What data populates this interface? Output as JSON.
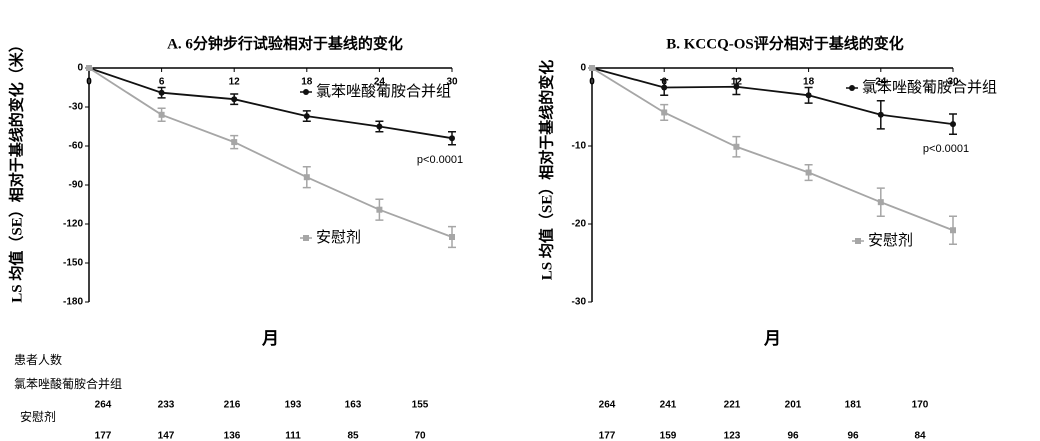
{
  "chart_data": [
    {
      "type": "line",
      "title": "A. 6分钟步行试验相对于基线的变化",
      "ylabel": "LS 均值（SE）相对于基线的变化（米）",
      "xlabel": "月",
      "x": [
        0,
        6,
        12,
        18,
        24,
        30
      ],
      "xlim": [
        0,
        30
      ],
      "xticks": [
        0,
        6,
        12,
        18,
        24,
        30
      ],
      "ylim": [
        -180,
        0
      ],
      "yticks": [
        0,
        -30,
        -60,
        -90,
        -120,
        -150,
        -180
      ],
      "annotation": "p<0.0001",
      "series": [
        {
          "name": "氯苯唑酸葡胺合并组",
          "color": "#111111",
          "marker": "circle",
          "values": [
            0,
            -19,
            -24,
            -37,
            -45,
            -54
          ],
          "errors": [
            0,
            4,
            4,
            4,
            4,
            5
          ]
        },
        {
          "name": "安慰剂",
          "color": "#a6a6a6",
          "marker": "square",
          "values": [
            0,
            -36,
            -57,
            -84,
            -109,
            -130
          ],
          "errors": [
            0,
            5,
            5,
            8,
            8,
            8
          ]
        }
      ]
    },
    {
      "type": "line",
      "title": "B. KCCQ-OS评分相对于基线的变化",
      "ylabel": "LS 均值（SE）相对于基线的变化",
      "xlabel": "月",
      "x": [
        0,
        6,
        12,
        18,
        24,
        30
      ],
      "xlim": [
        0,
        30
      ],
      "xticks": [
        0,
        6,
        12,
        18,
        24,
        30
      ],
      "ylim": [
        -30,
        0
      ],
      "yticks": [
        0,
        -10,
        -20,
        -30
      ],
      "annotation": "p<0.0001",
      "series": [
        {
          "name": "氯苯唑酸葡胺合并组",
          "color": "#111111",
          "marker": "circle",
          "values": [
            0,
            -2.5,
            -2.4,
            -3.5,
            -6,
            -7.2
          ],
          "errors": [
            0,
            1,
            1,
            1,
            1.8,
            1.3
          ]
        },
        {
          "name": "安慰剂",
          "color": "#a6a6a6",
          "marker": "square",
          "values": [
            0,
            -5.7,
            -10.1,
            -13.4,
            -17.2,
            -20.8
          ],
          "errors": [
            0,
            1,
            1.3,
            1,
            1.8,
            1.8
          ]
        }
      ]
    }
  ],
  "at_risk": {
    "title": "患者人数",
    "groups": [
      {
        "name": "氯苯唑酸葡胺合并组",
        "counts": [
          [
            264,
            233,
            216,
            193,
            163,
            155
          ],
          [
            264,
            241,
            221,
            201,
            181,
            170
          ]
        ]
      },
      {
        "name": "安慰剂",
        "counts": [
          [
            177,
            147,
            136,
            111,
            85,
            70
          ],
          [
            177,
            159,
            123,
            96,
            96,
            84
          ]
        ]
      }
    ]
  }
}
